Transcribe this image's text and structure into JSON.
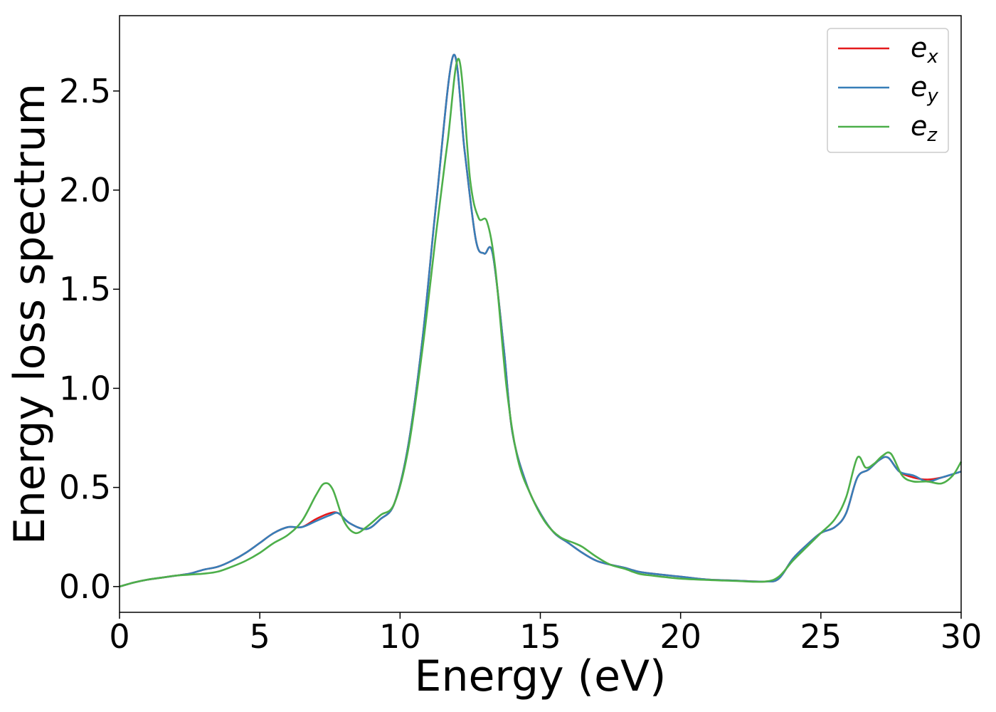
{
  "chart_data": {
    "type": "line",
    "title": "",
    "xlabel": "Energy (eV)",
    "ylabel": "Energy loss spectrum",
    "xlim": [
      0,
      30
    ],
    "ylim": [
      -0.13,
      2.88
    ],
    "xticks": [
      0,
      5,
      10,
      15,
      20,
      25,
      30
    ],
    "yticks": [
      0.0,
      0.5,
      1.0,
      1.5,
      2.0,
      2.5
    ],
    "grid": false,
    "legend_position": "top-right",
    "series": [
      {
        "name": "e_x",
        "label_base": "e",
        "label_sub": "x",
        "color": "#e41a1c",
        "x": [
          0,
          0.5,
          1,
          1.5,
          2,
          2.5,
          3,
          3.5,
          4,
          4.5,
          5,
          5.5,
          6,
          6.5,
          7,
          7.5,
          7.8,
          8.2,
          8.8,
          9.3,
          9.8,
          10.3,
          10.8,
          11.3,
          11.9,
          12.3,
          12.7,
          13,
          13.3,
          13.7,
          14,
          14.5,
          15,
          15.5,
          16,
          16.5,
          17,
          17.5,
          18,
          18.5,
          19,
          20,
          21,
          22,
          23,
          23.5,
          24,
          24.5,
          25,
          25.5,
          25.9,
          26.3,
          26.7,
          27.1,
          27.4,
          27.8,
          28.3,
          28.8,
          29.3,
          30
        ],
        "y": [
          0.0,
          0.02,
          0.035,
          0.045,
          0.055,
          0.065,
          0.085,
          0.1,
          0.13,
          0.17,
          0.22,
          0.27,
          0.3,
          0.3,
          0.34,
          0.37,
          0.37,
          0.32,
          0.29,
          0.34,
          0.42,
          0.72,
          1.25,
          1.95,
          2.68,
          2.2,
          1.75,
          1.68,
          1.68,
          1.2,
          0.78,
          0.52,
          0.37,
          0.27,
          0.22,
          0.17,
          0.13,
          0.11,
          0.095,
          0.075,
          0.065,
          0.05,
          0.035,
          0.03,
          0.025,
          0.04,
          0.14,
          0.21,
          0.27,
          0.3,
          0.37,
          0.55,
          0.59,
          0.64,
          0.65,
          0.58,
          0.55,
          0.54,
          0.55,
          0.58
        ]
      },
      {
        "name": "e_y",
        "label_base": "e",
        "label_sub": "y",
        "color": "#377eb8",
        "x": [
          0,
          0.5,
          1,
          1.5,
          2,
          2.5,
          3,
          3.5,
          4,
          4.5,
          5,
          5.5,
          6,
          6.5,
          7,
          7.5,
          7.8,
          8.2,
          8.8,
          9.3,
          9.8,
          10.3,
          10.8,
          11.3,
          11.9,
          12.3,
          12.7,
          13,
          13.3,
          13.7,
          14,
          14.5,
          15,
          15.5,
          16,
          16.5,
          17,
          17.5,
          18,
          18.5,
          19,
          20,
          21,
          22,
          23,
          23.5,
          24,
          24.5,
          25,
          25.5,
          25.9,
          26.3,
          26.7,
          27.1,
          27.4,
          27.8,
          28.3,
          28.8,
          29.3,
          30
        ],
        "y": [
          0.0,
          0.02,
          0.035,
          0.045,
          0.055,
          0.065,
          0.085,
          0.1,
          0.13,
          0.17,
          0.22,
          0.27,
          0.3,
          0.3,
          0.33,
          0.36,
          0.37,
          0.32,
          0.29,
          0.34,
          0.42,
          0.72,
          1.25,
          1.95,
          2.68,
          2.2,
          1.75,
          1.68,
          1.68,
          1.2,
          0.78,
          0.52,
          0.37,
          0.27,
          0.22,
          0.17,
          0.13,
          0.11,
          0.095,
          0.075,
          0.065,
          0.05,
          0.035,
          0.03,
          0.025,
          0.04,
          0.14,
          0.21,
          0.27,
          0.3,
          0.37,
          0.55,
          0.59,
          0.64,
          0.65,
          0.58,
          0.56,
          0.53,
          0.55,
          0.58
        ]
      },
      {
        "name": "e_z",
        "label_base": "e",
        "label_sub": "z",
        "color": "#4daf4a",
        "x": [
          0,
          0.5,
          1,
          1.5,
          2,
          2.5,
          3,
          3.5,
          4,
          4.5,
          5,
          5.5,
          6,
          6.5,
          7,
          7.3,
          7.6,
          8,
          8.4,
          8.8,
          9.3,
          9.8,
          10.3,
          10.8,
          11.3,
          11.7,
          12.1,
          12.5,
          12.8,
          13.1,
          13.4,
          13.8,
          14.2,
          14.7,
          15.2,
          15.7,
          16.2,
          16.5,
          17,
          17.5,
          18,
          18.5,
          19,
          20,
          21,
          22,
          23,
          23.5,
          24,
          24.5,
          25,
          25.5,
          25.9,
          26.3,
          26.6,
          26.9,
          27.2,
          27.5,
          27.9,
          28.3,
          28.8,
          29.3,
          29.7,
          30
        ],
        "y": [
          0.0,
          0.02,
          0.035,
          0.045,
          0.055,
          0.06,
          0.065,
          0.075,
          0.1,
          0.13,
          0.17,
          0.22,
          0.26,
          0.33,
          0.46,
          0.52,
          0.49,
          0.33,
          0.27,
          0.3,
          0.36,
          0.42,
          0.7,
          1.2,
          1.8,
          2.25,
          2.66,
          2.05,
          1.86,
          1.84,
          1.6,
          1.0,
          0.64,
          0.45,
          0.32,
          0.25,
          0.22,
          0.2,
          0.15,
          0.11,
          0.09,
          0.065,
          0.055,
          0.04,
          0.033,
          0.028,
          0.025,
          0.05,
          0.13,
          0.2,
          0.27,
          0.34,
          0.45,
          0.65,
          0.6,
          0.62,
          0.66,
          0.67,
          0.56,
          0.53,
          0.53,
          0.52,
          0.56,
          0.63
        ]
      }
    ]
  }
}
